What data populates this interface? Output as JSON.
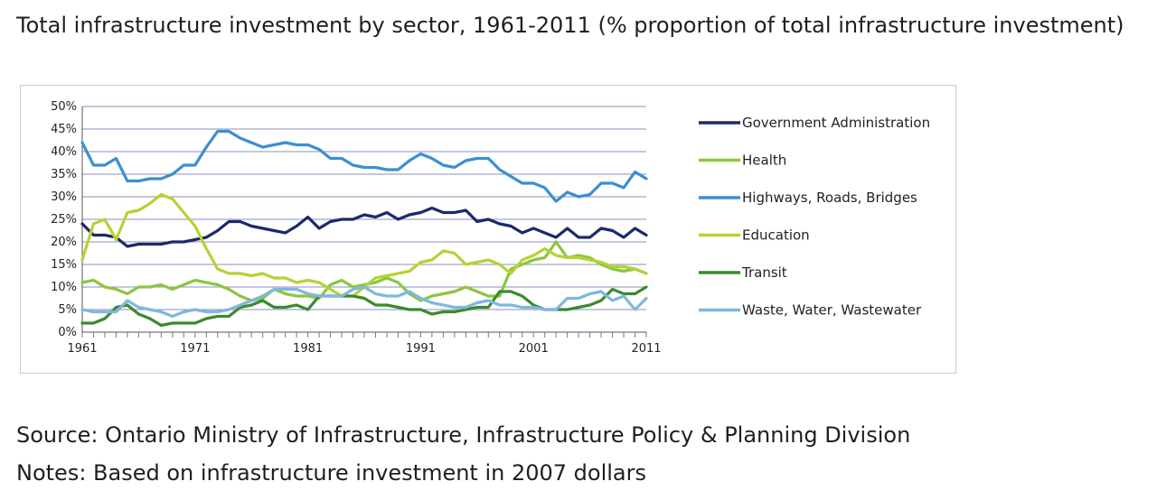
{
  "page": {
    "title": "Total infrastructure investment by sector, 1961-2011 (% proportion of total infrastructure investment)",
    "source": "Source: Ontario Ministry of Infrastructure, Infrastructure Policy & Planning Division",
    "notes": "Notes: Based on infrastructure investment in 2007 dollars"
  },
  "chart_data": {
    "type": "line",
    "title": "",
    "xlabel": "",
    "ylabel": "",
    "xlim": [
      1961,
      2011
    ],
    "ylim": [
      0,
      50
    ],
    "x_tick_labels": [
      "1961",
      "1971",
      "1981",
      "1991",
      "2001",
      "2011"
    ],
    "y_tick_labels": [
      "0%",
      "5%",
      "10%",
      "15%",
      "20%",
      "25%",
      "30%",
      "35%",
      "40%",
      "45%",
      "50%"
    ],
    "grid": "horizontal",
    "legend_position": "right",
    "x": [
      1961,
      1962,
      1963,
      1964,
      1965,
      1966,
      1967,
      1968,
      1969,
      1970,
      1971,
      1972,
      1973,
      1974,
      1975,
      1976,
      1977,
      1978,
      1979,
      1980,
      1981,
      1982,
      1983,
      1984,
      1985,
      1986,
      1987,
      1988,
      1989,
      1990,
      1991,
      1992,
      1993,
      1994,
      1995,
      1996,
      1997,
      1998,
      1999,
      2000,
      2001,
      2002,
      2003,
      2004,
      2005,
      2006,
      2007,
      2008,
      2009,
      2010,
      2011
    ],
    "series": [
      {
        "name": "Government Administration",
        "color": "#1b2a6b",
        "values": [
          24,
          21.5,
          21.5,
          21,
          19,
          19.5,
          19.5,
          19.5,
          20,
          20,
          20.5,
          21,
          22.5,
          24.5,
          24.5,
          23.5,
          23,
          22.5,
          22,
          23.5,
          25.5,
          23,
          24.5,
          25,
          25,
          26,
          25.5,
          26.5,
          25,
          26,
          26.5,
          27.5,
          26.5,
          26.5,
          27,
          24.5,
          25,
          24,
          23.5,
          22,
          23,
          22,
          21,
          23,
          21,
          21,
          23,
          22.5,
          21,
          23,
          21.5
        ]
      },
      {
        "name": "Health",
        "color": "#8cc63f",
        "values": [
          11,
          11.5,
          10,
          9.5,
          8.5,
          10,
          10,
          10.5,
          9.5,
          10.5,
          11.5,
          11,
          10.5,
          9.5,
          8,
          7,
          7.5,
          9.5,
          8.5,
          8,
          8,
          7.5,
          10.5,
          11.5,
          10,
          10.5,
          11,
          12,
          11,
          8.5,
          7,
          8,
          8.5,
          9,
          10,
          9,
          8,
          8,
          14,
          15,
          16,
          16.5,
          20,
          16.5,
          17,
          16.5,
          15,
          14,
          13.5,
          14,
          13
        ]
      },
      {
        "name": "Highways, Roads, Bridges",
        "color": "#3b8fd1",
        "values": [
          42,
          37,
          37,
          38.5,
          33.5,
          33.5,
          34,
          34,
          35,
          37,
          37,
          41,
          44.5,
          44.5,
          43,
          42,
          41,
          41.5,
          42,
          41.5,
          41.5,
          40.5,
          38.5,
          38.5,
          37,
          36.5,
          36.5,
          36,
          36,
          38,
          39.5,
          38.5,
          37,
          36.5,
          38,
          38.5,
          38.5,
          36,
          34.5,
          33,
          33,
          32,
          29,
          31,
          30,
          30.5,
          33,
          33,
          32,
          35.5,
          34
        ]
      },
      {
        "name": "Education",
        "color": "#b5d334",
        "values": [
          16,
          24,
          25,
          20.5,
          26.5,
          27,
          28.5,
          30.5,
          29.5,
          26.5,
          23.5,
          18.5,
          14,
          13,
          13,
          12.5,
          13,
          12,
          12,
          11,
          11.5,
          11,
          9.5,
          8,
          8,
          10,
          12,
          12.5,
          13,
          13.5,
          15.5,
          16,
          18,
          17.5,
          15,
          15.5,
          16,
          15,
          13,
          16,
          17,
          18.5,
          17,
          16.5,
          16.5,
          16,
          15.5,
          14.5,
          14.5,
          14,
          13
        ]
      },
      {
        "name": "Transit",
        "color": "#3a8a2f",
        "values": [
          2,
          2,
          3,
          5.5,
          6,
          4,
          3,
          1.5,
          2,
          2,
          2,
          3,
          3.5,
          3.5,
          5.5,
          6,
          7,
          5.5,
          5.5,
          6,
          5,
          8,
          8,
          8,
          8,
          7.5,
          6,
          6,
          5.5,
          5,
          5,
          4,
          4.5,
          4.5,
          5,
          5.5,
          5.5,
          9,
          9,
          8,
          6,
          5,
          5,
          5,
          5.5,
          6,
          7,
          9.5,
          8.5,
          8.5,
          10
        ]
      },
      {
        "name": "Waste, Water, Wastewater",
        "color": "#7fb7de",
        "values": [
          5,
          4.5,
          4.5,
          4.5,
          7,
          5.5,
          5,
          4.5,
          3.5,
          4.5,
          5,
          4.5,
          4.5,
          5,
          6,
          7,
          8,
          9.5,
          9.5,
          9.5,
          8.5,
          8,
          8,
          8,
          9.5,
          10,
          8.5,
          8,
          8,
          9,
          7.5,
          6.5,
          6,
          5.5,
          5.5,
          6.5,
          7,
          6,
          6,
          5.5,
          5.5,
          5,
          5,
          7.5,
          7.5,
          8.5,
          9,
          7,
          8,
          5,
          7.5
        ]
      }
    ]
  }
}
